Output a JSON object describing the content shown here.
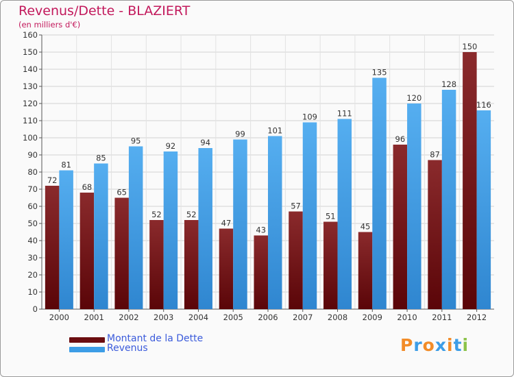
{
  "title": "Revenus/Dette - BLAZIERT",
  "subtitle": "(en milliers d'€)",
  "colors": {
    "dette": "#6b0d10",
    "revenus": "#3d9de6",
    "title": "#c2185b",
    "legend_text": "#3b5bdb"
  },
  "legend": {
    "dette_label": "Montant de la Dette",
    "revenus_label": "Revenus"
  },
  "logo": {
    "text": "Proxiti",
    "letters": [
      "P",
      "r",
      "o",
      "x",
      "i",
      "t",
      "i"
    ],
    "colors": [
      "#f28c28",
      "#3d9de6",
      "#f28c28",
      "#3d9de6",
      "#f28c28",
      "#3d9de6",
      "#8bc34a"
    ]
  },
  "chart_data": {
    "type": "bar",
    "title": "Revenus/Dette - BLAZIERT",
    "subtitle": "(en milliers d'€)",
    "xlabel": "",
    "ylabel": "",
    "ylim": [
      0,
      160
    ],
    "ytick_step": 10,
    "grid": true,
    "legend_position": "bottom-left",
    "categories": [
      "2000",
      "2001",
      "2002",
      "2003",
      "2004",
      "2005",
      "2006",
      "2007",
      "2008",
      "2009",
      "2010",
      "2011",
      "2012"
    ],
    "series": [
      {
        "name": "Montant de la Dette",
        "values": [
          72,
          68,
          65,
          52,
          52,
          47,
          43,
          57,
          51,
          45,
          96,
          87,
          150
        ]
      },
      {
        "name": "Revenus",
        "values": [
          81,
          85,
          95,
          92,
          94,
          99,
          101,
          109,
          111,
          135,
          120,
          128,
          116
        ]
      }
    ]
  }
}
